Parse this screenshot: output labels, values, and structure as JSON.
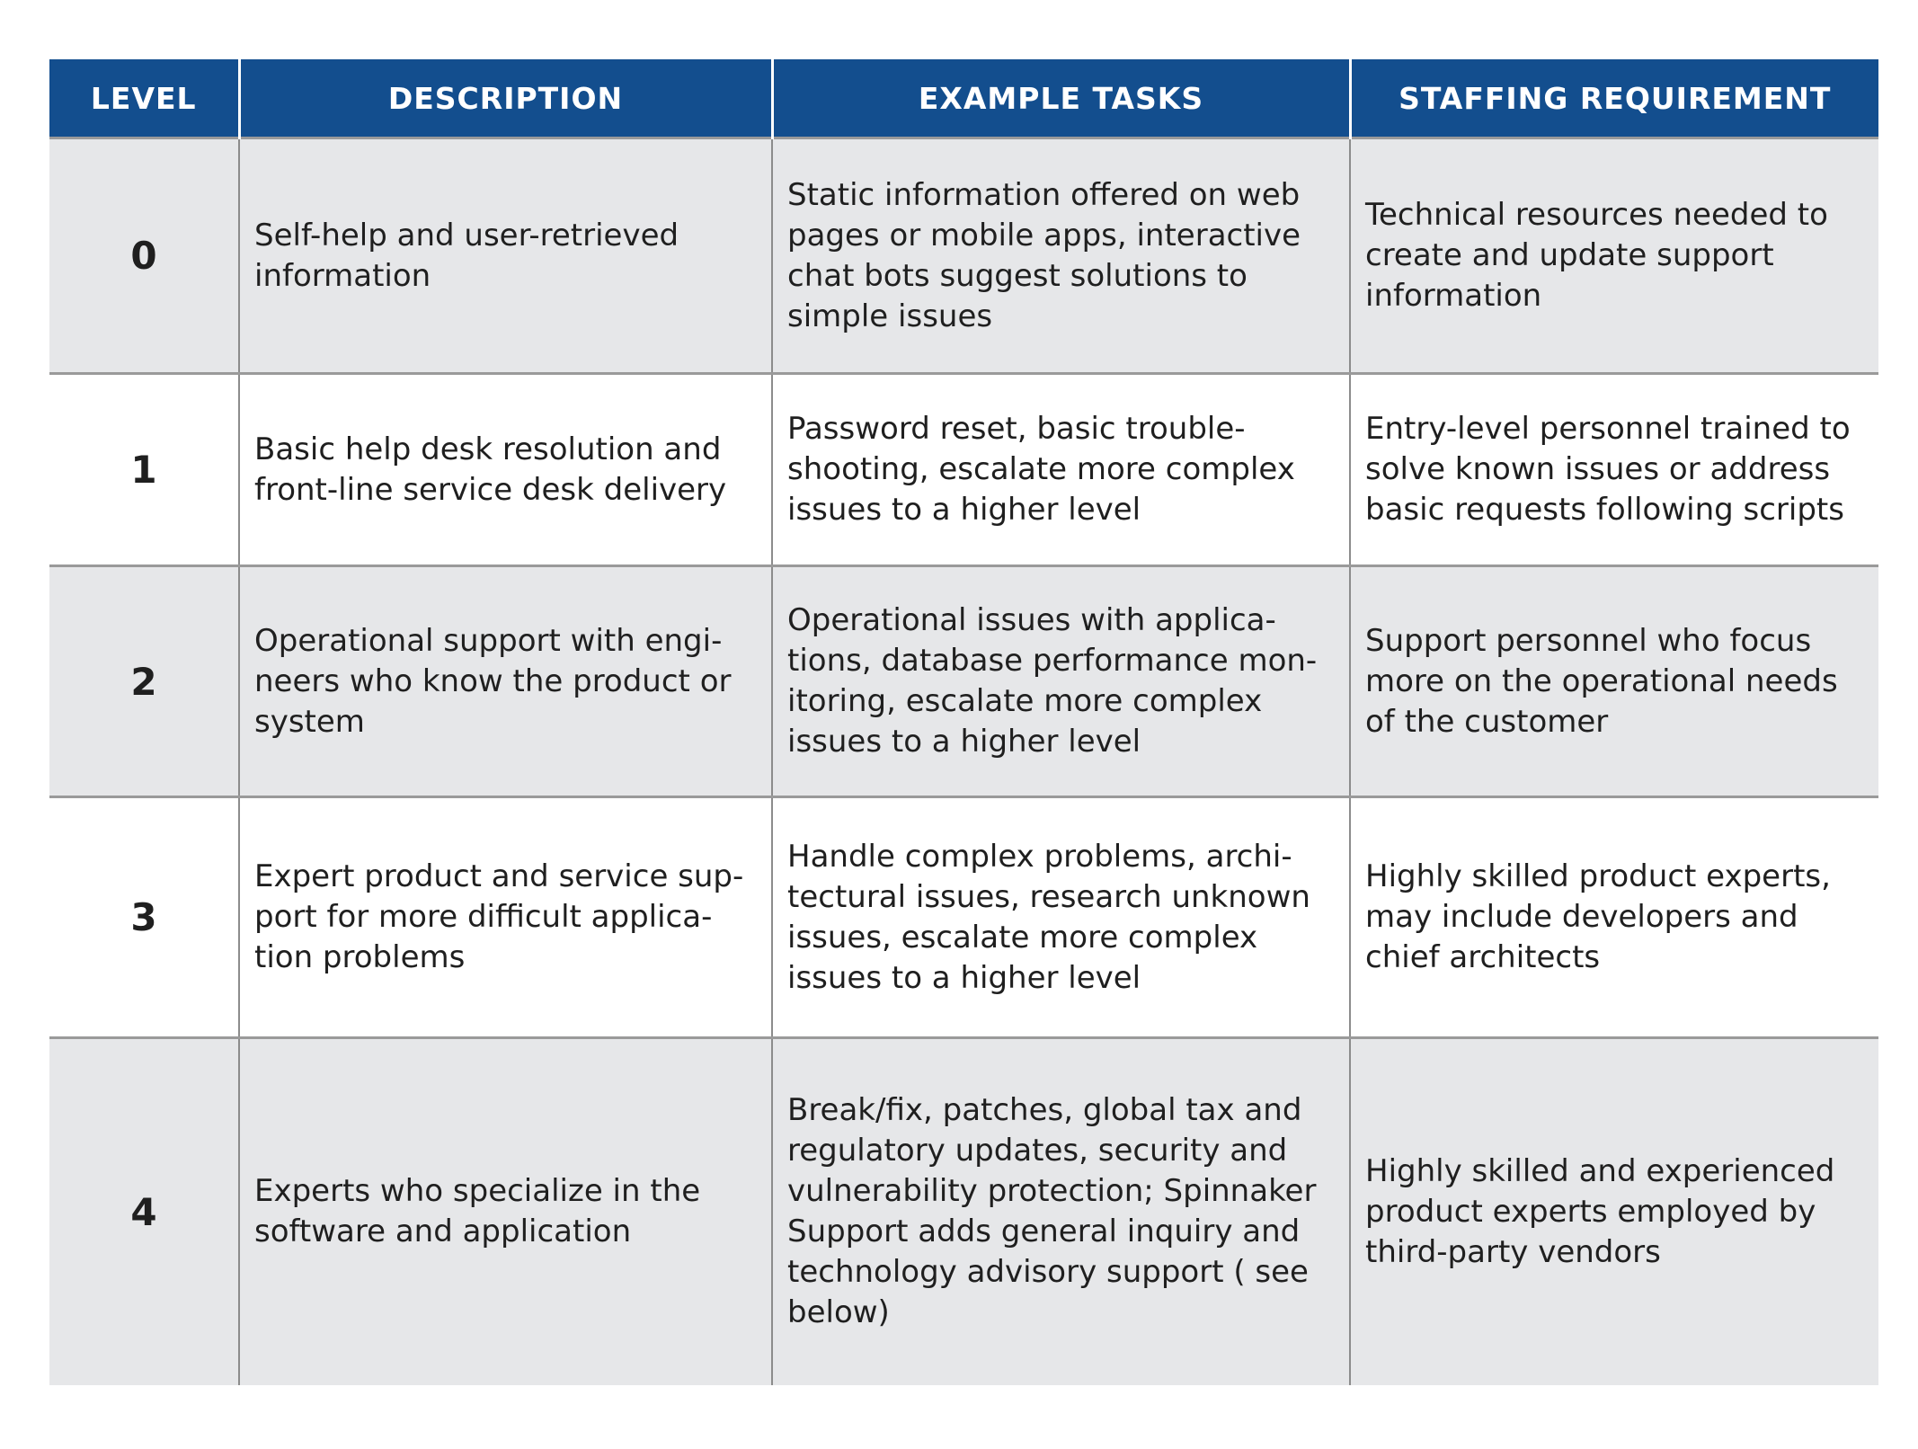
{
  "table": {
    "headers": {
      "level": "LEVEL",
      "description": "DESCRIPTION",
      "example_tasks": "EXAMPLE TASKS",
      "staffing": "STAFFING REQUIREMENT"
    },
    "rows": [
      {
        "level": "0",
        "description": "Self-help and user-retrieved information",
        "example_tasks": "Static information offered on web pages or mobile apps, interactive chat bots suggest solutions to simple issues",
        "staffing": "Technical resources needed to create and update support information"
      },
      {
        "level": "1",
        "description": "Basic help desk resolution and front-line service desk delivery",
        "example_tasks": "Password reset, basic trouble-shooting, escalate more complex issues to a higher level",
        "staffing": "Entry-level personnel trained to solve known issues or address basic requests following scripts"
      },
      {
        "level": "2",
        "description": "Operational support with engi-neers who know the product or system",
        "example_tasks": "Operational issues with applica-tions, database performance mon-itoring, escalate more complex issues to a higher level",
        "staffing": "Support personnel who focus more on the operational needs of the customer"
      },
      {
        "level": "3",
        "description": "Expert product and service sup-port for more difficult applica-tion problems",
        "example_tasks": "Handle complex problems, archi-tectural issues, research unknown issues, escalate more complex issues to a higher level",
        "staffing": "Highly skilled product experts, may include developers and chief architects"
      },
      {
        "level": "4",
        "description": "Experts who specialize in the software and application",
        "example_tasks": "Break/fix, patches, global tax and regulatory updates, security and vulnerability protection; Spinnaker Support adds general inquiry and technology advisory support ( see below)",
        "staffing": "Highly skilled and experienced product experts employed by third-party vendors"
      }
    ]
  }
}
